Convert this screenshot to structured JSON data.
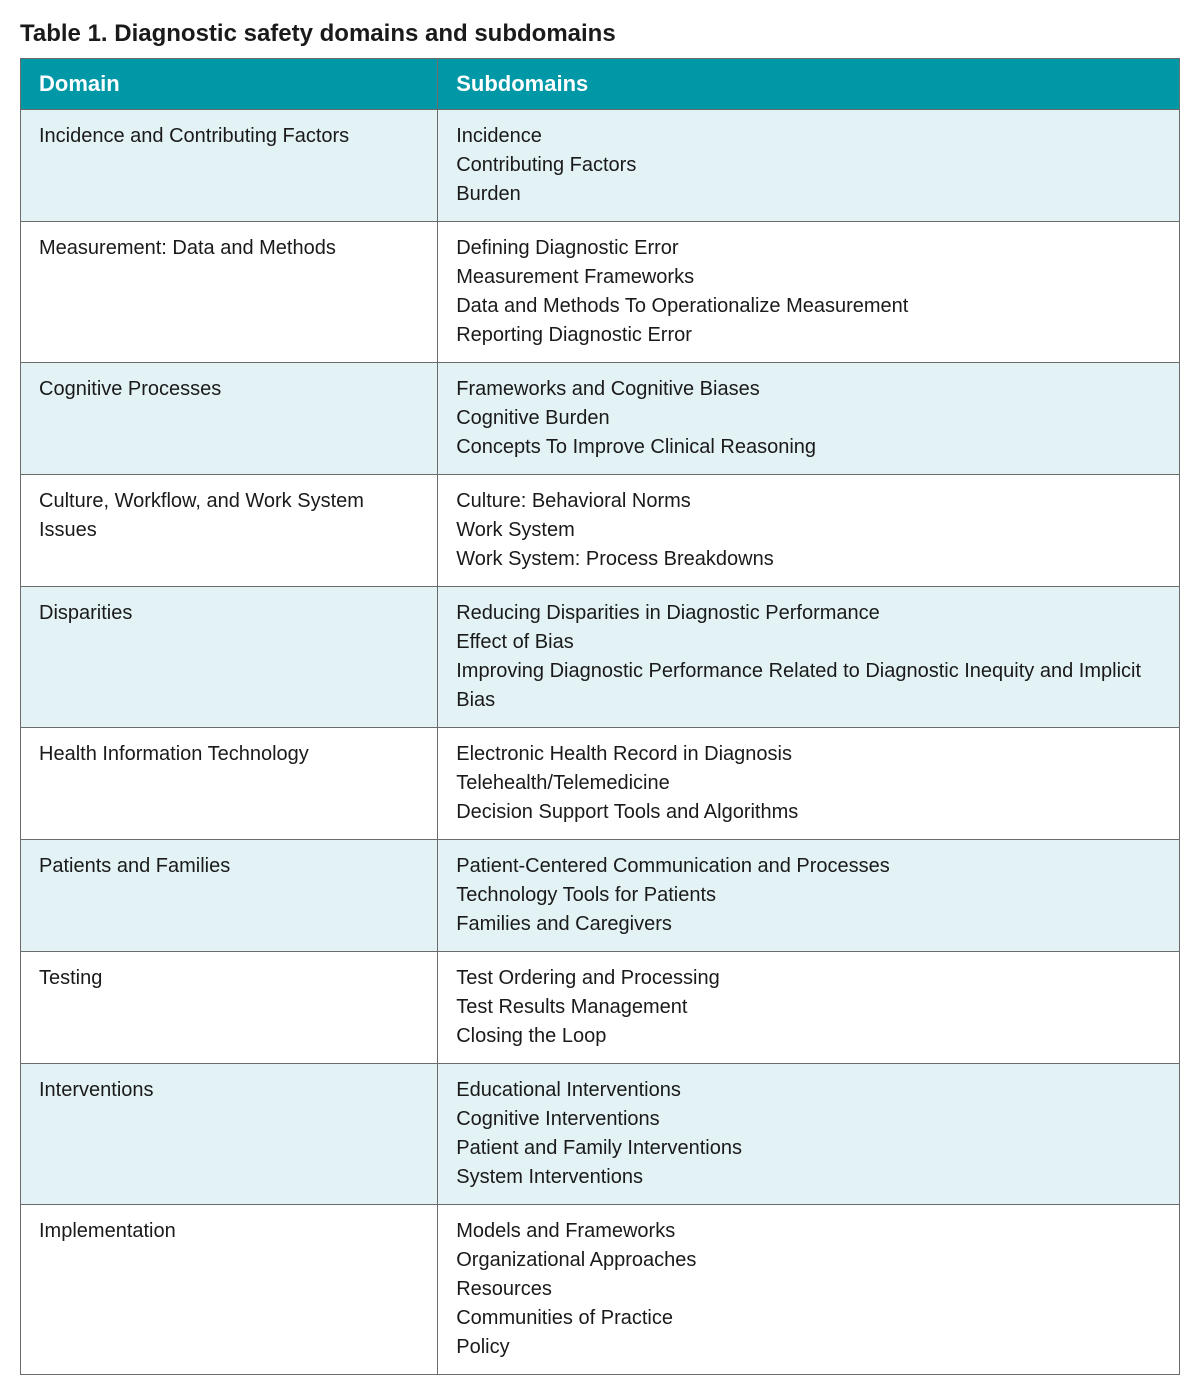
{
  "title": "Table 1. Diagnostic safety domains and subdomains",
  "columns": [
    "Domain",
    "Subdomains"
  ],
  "colors": {
    "header_bg": "#0097a7",
    "header_text": "#ffffff",
    "row_odd_bg": "#e3f2f5",
    "row_even_bg": "#ffffff",
    "border": "#6b6b6b",
    "text": "#1a1a1a"
  },
  "layout": {
    "col1_width_pct": 36,
    "font_size_title": 24,
    "font_size_header": 22,
    "font_size_cell": 20
  },
  "rows": [
    {
      "domain": "Incidence and Contributing Factors",
      "subdomains": [
        "Incidence",
        "Contributing Factors",
        "Burden"
      ]
    },
    {
      "domain": "Measurement: Data and Methods",
      "subdomains": [
        "Defining Diagnostic Error",
        "Measurement Frameworks",
        "Data and Methods To Operationalize Measurement",
        "Reporting Diagnostic Error"
      ]
    },
    {
      "domain": "Cognitive Processes",
      "subdomains": [
        "Frameworks and Cognitive Biases",
        "Cognitive Burden",
        "Concepts To Improve Clinical Reasoning"
      ]
    },
    {
      "domain": "Culture, Workflow, and Work System Issues",
      "subdomains": [
        "Culture: Behavioral Norms",
        "Work System",
        "Work System: Process Breakdowns"
      ]
    },
    {
      "domain": "Disparities",
      "subdomains": [
        "Reducing Disparities in Diagnostic Performance",
        "Effect of Bias",
        "Improving Diagnostic Performance Related to Diagnostic Inequity and Implicit Bias"
      ]
    },
    {
      "domain": "Health Information Technology",
      "subdomains": [
        "Electronic Health Record in Diagnosis",
        "Telehealth/Telemedicine",
        "Decision Support Tools and Algorithms"
      ]
    },
    {
      "domain": "Patients and Families",
      "subdomains": [
        "Patient-Centered Communication and Processes",
        "Technology Tools for Patients",
        "Families and Caregivers"
      ]
    },
    {
      "domain": "Testing",
      "subdomains": [
        "Test Ordering and Processing",
        "Test Results Management",
        "Closing the Loop"
      ]
    },
    {
      "domain": "Interventions",
      "subdomains": [
        "Educational Interventions",
        "Cognitive Interventions",
        "Patient and Family Interventions",
        "System Interventions"
      ]
    },
    {
      "domain": "Implementation",
      "subdomains": [
        "Models and Frameworks",
        "Organizational Approaches",
        "Resources",
        "Communities of Practice",
        "Policy"
      ]
    }
  ]
}
